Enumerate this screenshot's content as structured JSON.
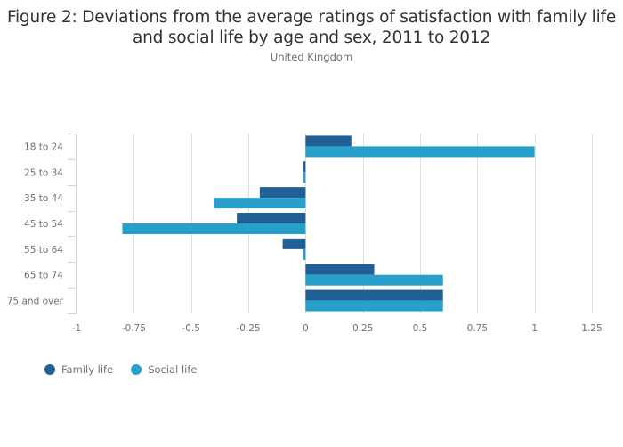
{
  "chart_data": {
    "type": "bar",
    "orientation": "horizontal",
    "title": "Figure 2: Deviations from the average ratings of satisfaction with family life and social life by age and sex, 2011 to 2012",
    "title_lines": [
      "Figure 2: Deviations from the average ratings of satisfaction with family life",
      "and social life by age and sex, 2011 to 2012"
    ],
    "subtitle": "United Kingdom",
    "categories": [
      "18 to 24",
      "25 to 34",
      "35 to 44",
      "45 to 54",
      "55 to 64",
      "65 to 74",
      "75 and over"
    ],
    "series": [
      {
        "name": "Family life",
        "color": "#206095",
        "values": [
          0.2,
          -0.01,
          -0.2,
          -0.3,
          -0.1,
          0.3,
          0.6
        ]
      },
      {
        "name": "Social life",
        "color": "#27a0cc",
        "values": [
          1.0,
          -0.01,
          -0.4,
          -0.8,
          -0.01,
          0.6,
          0.6
        ]
      }
    ],
    "xlabel": "",
    "ylabel": "",
    "xlim": [
      -1,
      1.25
    ],
    "xticks": [
      -1,
      -0.75,
      -0.5,
      -0.25,
      0,
      0.25,
      0.5,
      0.75,
      1,
      1.25
    ],
    "xtick_labels": [
      "-1",
      "-0.75",
      "-0.5",
      "-0.25",
      "0",
      "0.25",
      "0.5",
      "0.75",
      "1",
      "1.25"
    ],
    "grid": true,
    "legend_position": "bottom-left"
  }
}
